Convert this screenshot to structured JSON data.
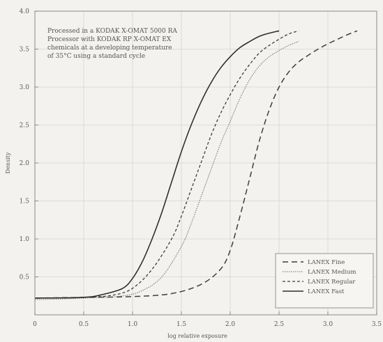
{
  "chart_data": {
    "type": "line",
    "title": "",
    "xlabel": "log relative exposure",
    "ylabel": "Density",
    "xlim": [
      0,
      3.5
    ],
    "ylim": [
      0,
      4.0
    ],
    "x_ticks": [
      0,
      0.5,
      1.0,
      1.5,
      2.0,
      2.5,
      3.0,
      3.5
    ],
    "x_tick_labels": [
      "0",
      "0.5",
      "1.0",
      "1.5",
      "2.0",
      "2.5",
      "3.0",
      "3.5"
    ],
    "y_ticks": [
      0.5,
      1.0,
      1.5,
      2.0,
      2.5,
      3.0,
      3.5,
      4.0
    ],
    "y_tick_labels": [
      "0.5",
      "1.0",
      "1.5",
      "2.0",
      "2.5",
      "3.0",
      "3.5",
      "4.0"
    ],
    "grid": true,
    "legend_position": "bottom-right",
    "annotation": [
      "Processed in a KODAK X-OMAT 5000 RA",
      "Processor with KODAK RP X-OMAT EX",
      "chemicals at a developing temperature",
      "of 35°C using a standard cycle"
    ],
    "series": [
      {
        "name": "LANEX Fine",
        "dash": "8,5",
        "width": 1.5,
        "x": [
          0.0,
          0.5,
          1.0,
          1.4,
          1.7,
          1.9,
          2.0,
          2.1,
          2.2,
          2.3,
          2.4,
          2.5,
          2.6,
          2.7,
          2.8,
          2.9,
          3.0,
          3.1,
          3.2,
          3.3
        ],
        "y": [
          0.22,
          0.23,
          0.24,
          0.28,
          0.4,
          0.6,
          0.85,
          1.3,
          1.8,
          2.3,
          2.7,
          3.0,
          3.2,
          3.33,
          3.42,
          3.5,
          3.57,
          3.63,
          3.69,
          3.74
        ]
      },
      {
        "name": "LANEX Medium",
        "dash": "1.5,1.5",
        "width": 1.0,
        "x": [
          0.0,
          0.5,
          0.9,
          1.1,
          1.3,
          1.5,
          1.6,
          1.7,
          1.8,
          1.9,
          2.0,
          2.1,
          2.2,
          2.3,
          2.4,
          2.5,
          2.6,
          2.7
        ],
        "y": [
          0.2,
          0.22,
          0.25,
          0.32,
          0.5,
          0.9,
          1.2,
          1.55,
          1.9,
          2.25,
          2.55,
          2.85,
          3.1,
          3.28,
          3.4,
          3.48,
          3.55,
          3.6
        ]
      },
      {
        "name": "LANEX Regular",
        "dash": "4,3",
        "width": 1.3,
        "x": [
          0.0,
          0.5,
          0.8,
          1.0,
          1.2,
          1.4,
          1.5,
          1.6,
          1.7,
          1.8,
          1.9,
          2.0,
          2.1,
          2.2,
          2.3,
          2.4,
          2.5,
          2.6,
          2.7
        ],
        "y": [
          0.22,
          0.23,
          0.26,
          0.35,
          0.6,
          1.0,
          1.3,
          1.65,
          2.0,
          2.35,
          2.65,
          2.9,
          3.12,
          3.3,
          3.45,
          3.55,
          3.63,
          3.7,
          3.74
        ]
      },
      {
        "name": "LANEX Fast",
        "dash": "",
        "width": 1.6,
        "x": [
          0.0,
          0.5,
          0.7,
          0.9,
          1.0,
          1.1,
          1.2,
          1.3,
          1.4,
          1.5,
          1.6,
          1.7,
          1.8,
          1.9,
          2.0,
          2.1,
          2.2,
          2.3,
          2.4,
          2.5
        ],
        "y": [
          0.22,
          0.23,
          0.27,
          0.35,
          0.48,
          0.7,
          1.0,
          1.35,
          1.75,
          2.15,
          2.5,
          2.8,
          3.05,
          3.25,
          3.4,
          3.52,
          3.6,
          3.67,
          3.71,
          3.74
        ]
      }
    ]
  }
}
